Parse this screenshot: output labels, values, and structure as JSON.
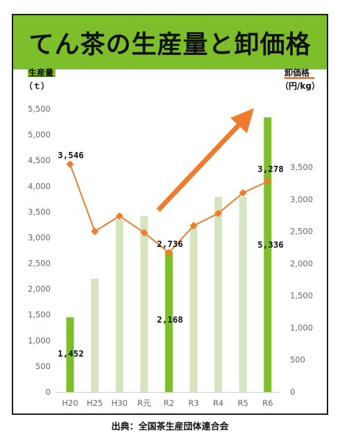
{
  "chart_data": {
    "type": "bar",
    "title": "てん茶の生産量と卸価格",
    "categories": [
      "H20",
      "H25",
      "H30",
      "R元",
      "R2",
      "R3",
      "R4",
      "R5",
      "R6"
    ],
    "series": [
      {
        "name": "生産量",
        "type": "bar",
        "axis": "left",
        "values": [
          1452,
          2200,
          3350,
          3420,
          2736,
          3200,
          3790,
          3790,
          5336
        ],
        "highlight": [
          true,
          false,
          false,
          false,
          true,
          false,
          false,
          false,
          true
        ],
        "labels": [
          "1,452",
          "",
          "",
          "",
          "2,736",
          "",
          "",
          "",
          "5,336"
        ]
      },
      {
        "name": "卸価格",
        "type": "line",
        "axis": "right",
        "values": [
          3546,
          2500,
          2740,
          2480,
          2168,
          2590,
          2780,
          3100,
          3278
        ],
        "labels": [
          "3,546",
          "",
          "",
          "",
          "2,168",
          "",
          "",
          "",
          "3,278"
        ]
      }
    ],
    "left_axis": {
      "label": "生産量",
      "unit": "（ｔ）",
      "ylim": [
        0,
        5500
      ],
      "ticks": [
        0,
        500,
        1000,
        1500,
        2000,
        2500,
        3000,
        3500,
        4000,
        4500,
        5000,
        5500
      ],
      "tick_labels": [
        "0",
        "500",
        "1,000",
        "1,500",
        "2,000",
        "2,500",
        "3,000",
        "3,500",
        "4,000",
        "4,500",
        "5,000",
        "5,500"
      ]
    },
    "right_axis": {
      "label": "卸価格",
      "unit": "（円/kg）",
      "ylim": [
        0,
        3500
      ],
      "ticks": [
        0,
        500,
        1000,
        1500,
        2000,
        2500,
        3000,
        3500
      ],
      "tick_labels": [
        "0",
        "500",
        "1,000",
        "1,500",
        "2,000",
        "2,500",
        "3,000",
        "3,500"
      ]
    },
    "grid": false,
    "annotation": "up-arrow"
  },
  "source": "出典：全国茶生産団体連合会",
  "colors": {
    "title_bg": "#7cbf2a",
    "bar_highlight": "#7cbf2a",
    "bar_normal": "#d6e4c0",
    "line": "#ef7b2d",
    "arrow": "#ef7b2d",
    "axis_label_bg": "#7cbf2a",
    "right_label_underline": "#ef7b2d",
    "tick_text": "#666666",
    "data_label": "#111111"
  }
}
